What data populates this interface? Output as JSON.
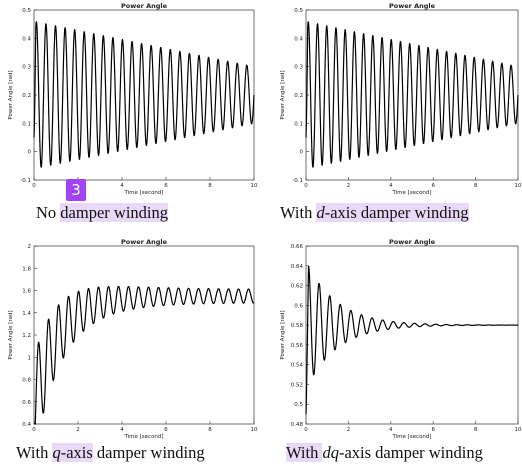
{
  "theme": {
    "highlight": "#e9d8f7",
    "badge": "#a142f4",
    "trace": "#000000"
  },
  "badge": {
    "label": "3"
  },
  "captions": [
    {
      "parts": [
        {
          "text": "No ",
          "italic": false,
          "hl": false
        },
        {
          "text": "damper winding",
          "italic": false,
          "hl": true
        }
      ]
    },
    {
      "parts": [
        {
          "text": "With ",
          "italic": false,
          "hl": false
        },
        {
          "text": "d",
          "italic": true,
          "hl": true
        },
        {
          "text": "-axis damper winding",
          "italic": false,
          "hl": true
        }
      ]
    },
    {
      "parts": [
        {
          "text": "With ",
          "italic": false,
          "hl": false
        },
        {
          "text": "q",
          "italic": true,
          "hl": true
        },
        {
          "text": "-axis",
          "italic": false,
          "hl": true
        },
        {
          "text": " damper winding",
          "italic": false,
          "hl": false
        }
      ]
    },
    {
      "parts": [
        {
          "text": "With ",
          "italic": false,
          "hl": true
        },
        {
          "text": "dq",
          "italic": true,
          "hl": false
        },
        {
          "text": "-axis damper winding",
          "italic": false,
          "hl": false
        }
      ]
    }
  ],
  "chart_data": [
    {
      "type": "line",
      "title": "Power Angle",
      "xlabel": "Time [second]",
      "ylabel": "Power Angle [rad]",
      "xlim": [
        0,
        10
      ],
      "ylim": [
        -0.1,
        0.5
      ],
      "xticks": [
        "0",
        "2",
        "4",
        "6",
        "8",
        "10"
      ],
      "yticks": [
        "-0.1",
        "0",
        "0.1",
        "0.2",
        "0.3",
        "0.4",
        "0.5"
      ],
      "series": [
        {
          "signal": {
            "kind": "sustained-oscillation",
            "mean": 0.2,
            "amplitude_start": 0.26,
            "amplitude_end": 0.1,
            "oscillations": 23,
            "start": 0.05
          }
        }
      ]
    },
    {
      "type": "line",
      "title": "Power Angle",
      "xlabel": "Time [second]",
      "ylabel": "Power Angle [rad]",
      "xlim": [
        0,
        10
      ],
      "ylim": [
        -0.1,
        0.5
      ],
      "xticks": [
        "0",
        "2",
        "4",
        "6",
        "8",
        "10"
      ],
      "yticks": [
        "-0.1",
        "0",
        "0.1",
        "0.2",
        "0.3",
        "0.4",
        "0.5"
      ],
      "series": [
        {
          "signal": {
            "kind": "sustained-oscillation",
            "mean": 0.2,
            "amplitude_start": 0.26,
            "amplitude_end": 0.1,
            "oscillations": 23,
            "start": 0.05
          }
        }
      ]
    },
    {
      "type": "line",
      "title": "Power Angle",
      "xlabel": "Time [second]",
      "ylabel": "Power Angle [rad]",
      "xlim": [
        0,
        10
      ],
      "ylim": [
        0.4,
        2
      ],
      "xticks": [
        "0",
        "2",
        "4",
        "6",
        "8",
        "10"
      ],
      "yticks": [
        "0.4",
        "0.6",
        "0.8",
        "1",
        "1.2",
        "1.4",
        "1.6",
        "1.8",
        "2"
      ],
      "series": [
        {
          "signal": {
            "kind": "growing-mean-oscillation",
            "mean_start": 0.55,
            "mean_end": 1.55,
            "amplitude_start": 0.45,
            "amplitude_end": 0.06,
            "oscillations": 22,
            "start": 0.45
          }
        }
      ]
    },
    {
      "type": "line",
      "title": "Power Angle",
      "xlabel": "Time [second]",
      "ylabel": "Power Angle [rad]",
      "xlim": [
        0,
        10
      ],
      "ylim": [
        0.48,
        0.66
      ],
      "xticks": [
        "0",
        "2",
        "4",
        "6",
        "8",
        "10"
      ],
      "yticks": [
        "0.48",
        "0.5",
        "0.52",
        "0.54",
        "0.56",
        "0.58",
        "0.6",
        "0.62",
        "0.64",
        "0.66"
      ],
      "series": [
        {
          "signal": {
            "kind": "damped-oscillation",
            "start": 0.49,
            "final": 0.58,
            "peak": 0.645,
            "period": 0.5,
            "decay_rate": 0.7
          }
        }
      ]
    }
  ]
}
